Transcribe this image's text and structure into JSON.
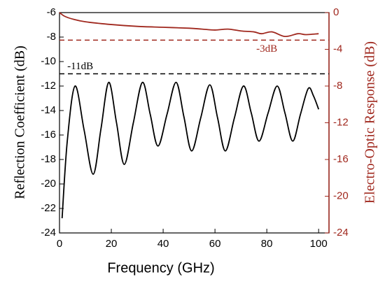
{
  "chart_data": {
    "type": "line",
    "xlabel": "Frequency (GHz)",
    "ylabel": "Reflection Coefficient (dB)",
    "y2label": "Electro-Optic Response (dB)",
    "xlim": [
      0,
      104
    ],
    "xticks": [
      0,
      20,
      40,
      60,
      80,
      100
    ],
    "ylim": [
      -24,
      -6
    ],
    "yticks": [
      -24,
      -22,
      -20,
      -18,
      -16,
      -14,
      -12,
      -10,
      -8,
      -6
    ],
    "y2lim": [
      -24,
      0
    ],
    "y2ticks": [
      -24,
      -20,
      -16,
      -12,
      -8,
      -4,
      0
    ],
    "y2color": "#a0281e",
    "series": [
      {
        "name": "Reflection Coefficient",
        "color": "#000000",
        "axis": "y",
        "x": [
          1,
          3,
          6,
          9.5,
          13,
          16,
          19,
          22,
          25,
          28.5,
          32,
          35,
          38,
          41.5,
          45,
          48,
          51,
          54.5,
          58,
          61,
          64,
          67.5,
          71,
          74,
          77,
          80.5,
          84,
          87,
          90,
          93,
          96,
          98,
          100
        ],
        "values": [
          -22.8,
          -16.5,
          -12,
          -15.6,
          -19.2,
          -15.5,
          -11.7,
          -15,
          -18.4,
          -15,
          -11.7,
          -14.3,
          -16.9,
          -14.3,
          -11.7,
          -14.5,
          -17.3,
          -14.6,
          -11.9,
          -14.6,
          -17.3,
          -14.6,
          -12,
          -14.2,
          -16.5,
          -14.2,
          -12,
          -14.2,
          -16.5,
          -14.3,
          -12.2,
          -12.8,
          -13.9
        ]
      },
      {
        "name": "Electro-Optic Response",
        "color": "#a0281e",
        "axis": "y2",
        "x": [
          0,
          2,
          5,
          10,
          20,
          30,
          40,
          50,
          55,
          60,
          65,
          70,
          75,
          78,
          82,
          87,
          92,
          95,
          100
        ],
        "values": [
          0,
          -0.4,
          -0.7,
          -1.0,
          -1.3,
          -1.5,
          -1.6,
          -1.7,
          -1.8,
          -1.9,
          -1.8,
          -2.0,
          -2.1,
          -2.3,
          -2.1,
          -2.6,
          -2.3,
          -2.4,
          -2.3
        ]
      }
    ],
    "reference_lines": [
      {
        "value": -11,
        "axis": "y",
        "label": "-11dB",
        "color": "#000000"
      },
      {
        "value": -3,
        "axis": "y2",
        "label": "-3dB",
        "color": "#a0281e"
      }
    ]
  }
}
